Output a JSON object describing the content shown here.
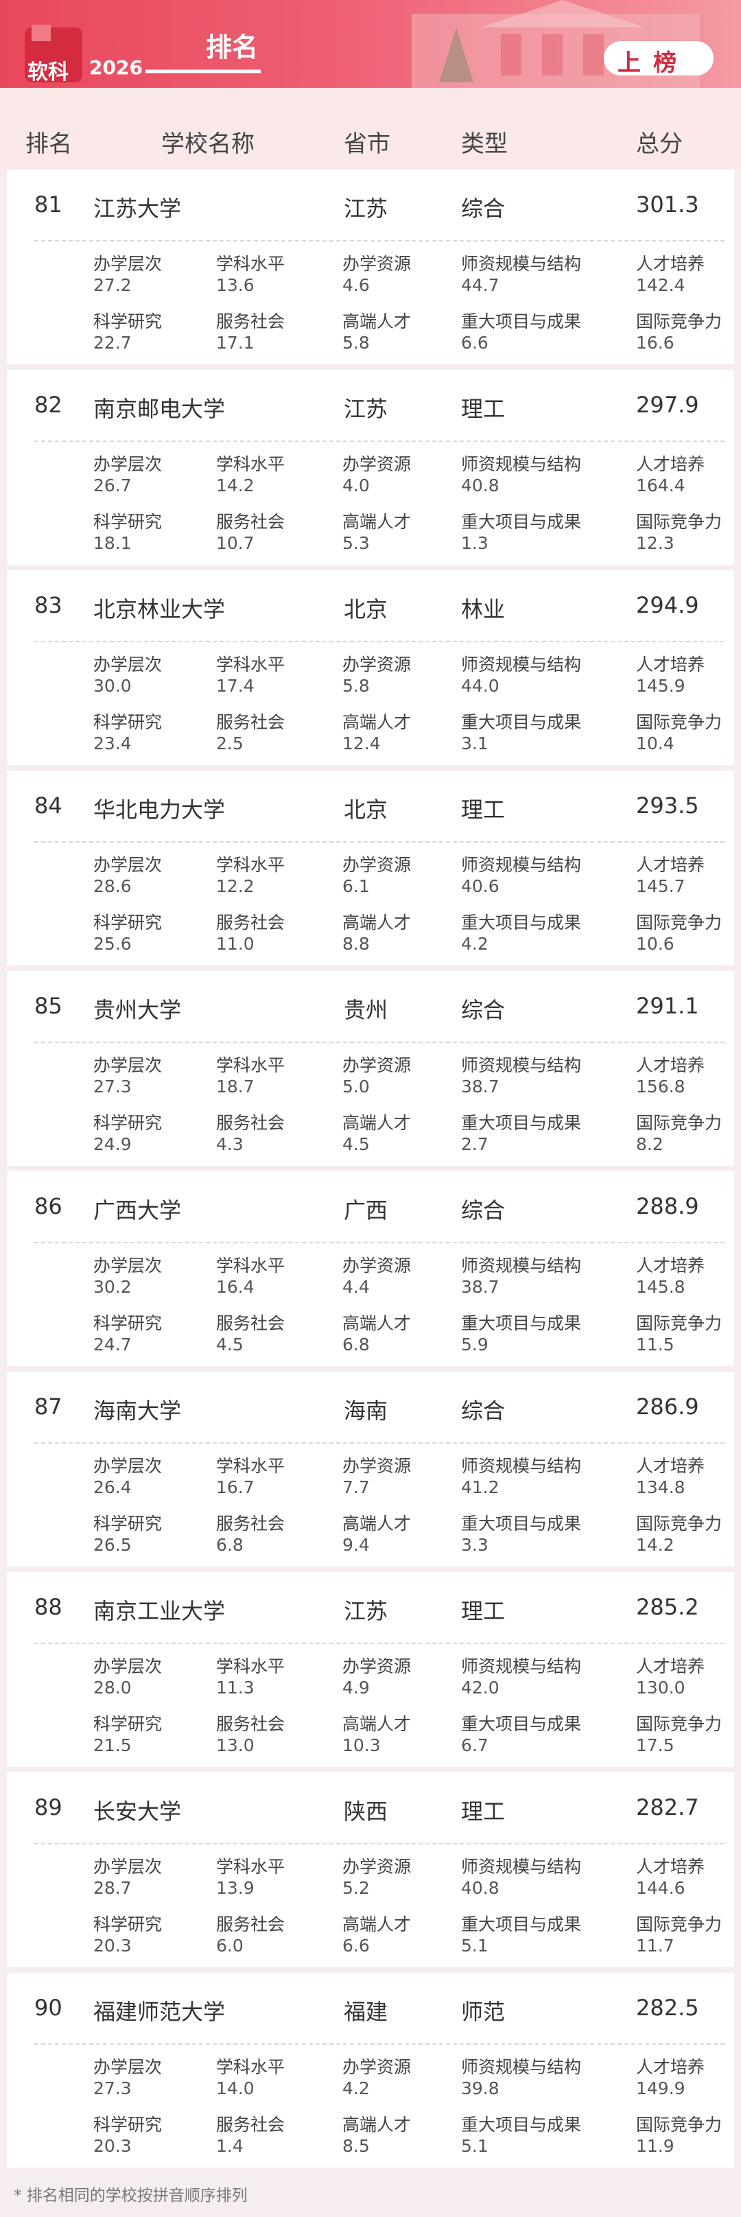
{
  "header": {
    "logo": "软科",
    "year": "2026",
    "title": "排名",
    "badge": "上榜"
  },
  "columns": [
    "排名",
    "学校名称",
    "省市",
    "类型",
    "总分"
  ],
  "metric_labels": [
    "办学层次",
    "学科水平",
    "办学资源",
    "师资规模与结构",
    "人才培养",
    "科学研究",
    "服务社会",
    "高端人才",
    "重大项目与成果",
    "国际竞争力"
  ],
  "rows": [
    {
      "rank": "81",
      "name": "江苏大学",
      "province": "江苏",
      "type": "综合",
      "score": "301.3",
      "metrics": [
        "27.2",
        "13.6",
        "4.6",
        "44.7",
        "142.4",
        "22.7",
        "17.1",
        "5.8",
        "6.6",
        "16.6"
      ]
    },
    {
      "rank": "82",
      "name": "南京邮电大学",
      "province": "江苏",
      "type": "理工",
      "score": "297.9",
      "metrics": [
        "26.7",
        "14.2",
        "4.0",
        "40.8",
        "164.4",
        "18.1",
        "10.7",
        "5.3",
        "1.3",
        "12.3"
      ]
    },
    {
      "rank": "83",
      "name": "北京林业大学",
      "province": "北京",
      "type": "林业",
      "score": "294.9",
      "metrics": [
        "30.0",
        "17.4",
        "5.8",
        "44.0",
        "145.9",
        "23.4",
        "2.5",
        "12.4",
        "3.1",
        "10.4"
      ]
    },
    {
      "rank": "84",
      "name": "华北电力大学",
      "province": "北京",
      "type": "理工",
      "score": "293.5",
      "metrics": [
        "28.6",
        "12.2",
        "6.1",
        "40.6",
        "145.7",
        "25.6",
        "11.0",
        "8.8",
        "4.2",
        "10.6"
      ]
    },
    {
      "rank": "85",
      "name": "贵州大学",
      "province": "贵州",
      "type": "综合",
      "score": "291.1",
      "metrics": [
        "27.3",
        "18.7",
        "5.0",
        "38.7",
        "156.8",
        "24.9",
        "4.3",
        "4.5",
        "2.7",
        "8.2"
      ]
    },
    {
      "rank": "86",
      "name": "广西大学",
      "province": "广西",
      "type": "综合",
      "score": "288.9",
      "metrics": [
        "30.2",
        "16.4",
        "4.4",
        "38.7",
        "145.8",
        "24.7",
        "4.5",
        "6.8",
        "5.9",
        "11.5"
      ]
    },
    {
      "rank": "87",
      "name": "海南大学",
      "province": "海南",
      "type": "综合",
      "score": "286.9",
      "metrics": [
        "26.4",
        "16.7",
        "7.7",
        "41.2",
        "134.8",
        "26.5",
        "6.8",
        "9.4",
        "3.3",
        "14.2"
      ]
    },
    {
      "rank": "88",
      "name": "南京工业大学",
      "province": "江苏",
      "type": "理工",
      "score": "285.2",
      "metrics": [
        "28.0",
        "11.3",
        "4.9",
        "42.0",
        "130.0",
        "21.5",
        "13.0",
        "10.3",
        "6.7",
        "17.5"
      ]
    },
    {
      "rank": "89",
      "name": "长安大学",
      "province": "陕西",
      "type": "理工",
      "score": "282.7",
      "metrics": [
        "28.7",
        "13.9",
        "5.2",
        "40.8",
        "144.6",
        "20.3",
        "6.0",
        "6.6",
        "5.1",
        "11.7"
      ]
    },
    {
      "rank": "90",
      "name": "福建师范大学",
      "province": "福建",
      "type": "师范",
      "score": "282.5",
      "metrics": [
        "27.3",
        "14.0",
        "4.2",
        "39.8",
        "149.9",
        "20.3",
        "1.4",
        "8.5",
        "5.1",
        "11.9"
      ]
    }
  ],
  "footnote": "* 排名相同的学校按拼音顺序排列"
}
